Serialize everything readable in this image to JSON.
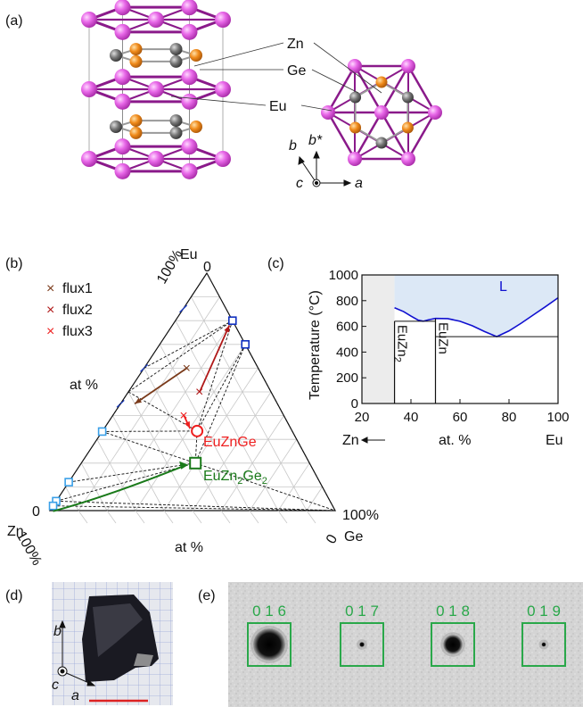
{
  "panels": {
    "a": "(a)",
    "b": "(b)",
    "c": "(c)",
    "d": "(d)",
    "e": "(e)"
  },
  "panel_a": {
    "atom_labels": [
      "Zn",
      "Ge",
      "Eu"
    ],
    "axes": {
      "b": "b",
      "bstar": "b*",
      "c": "c",
      "a": "a"
    },
    "colors": {
      "Eu": "#e060e0",
      "Zn": "#f08a1a",
      "Ge": "#666666",
      "bond": "#8a1a8a"
    }
  },
  "panel_b": {
    "legend": [
      {
        "label": "flux1",
        "color": "#7a3a1a"
      },
      {
        "label": "flux2",
        "color": "#b01818"
      },
      {
        "label": "flux3",
        "color": "#ee2020"
      }
    ],
    "vertices": {
      "top": "Eu",
      "left": "Zn",
      "right": "Ge"
    },
    "corner_values": {
      "top_100": "100%",
      "top_0": "0",
      "left_0": "0",
      "left_100": "100%",
      "right_100": "100%",
      "right_0": "0"
    },
    "axis_labels": {
      "left_side": "at %",
      "bottom": "at %"
    },
    "compounds": [
      {
        "label": "EuZnGe",
        "color": "#ee2020"
      },
      {
        "label_main": "EuZn",
        "label_sub": "2",
        "label_tail": "Ge",
        "label_sub2": "2",
        "color": "#1a7a1a"
      }
    ]
  },
  "panel_c": {
    "chart_data": {
      "type": "area",
      "title": "",
      "ylabel": "Temperature (°C)",
      "xlabel": "at. %",
      "x_left_label": "Zn",
      "x_right_label": "Eu",
      "xlim": [
        20,
        100
      ],
      "ylim": [
        0,
        1000
      ],
      "x_ticks": [
        20,
        40,
        60,
        80,
        100
      ],
      "y_ticks": [
        0,
        200,
        400,
        600,
        800,
        1000
      ],
      "liquidus": {
        "x": [
          33.3,
          37,
          40,
          43,
          45,
          47,
          50,
          55,
          60,
          65,
          70,
          75,
          80,
          85,
          90,
          95,
          100
        ],
        "y": [
          745,
          715,
          680,
          648,
          640,
          650,
          662,
          660,
          640,
          605,
          560,
          520,
          565,
          625,
          690,
          755,
          822
        ]
      },
      "liquid_label": "L",
      "phases": [
        {
          "name_main": "EuZn",
          "name_sub": "2",
          "x": 33.3,
          "top": 640
        },
        {
          "name_main": "EuZn",
          "name_sub": "",
          "x": 50,
          "top": 660
        }
      ],
      "eutectic_y": 520,
      "shaded_until": 33.3,
      "colors": {
        "liquid": "#dce8f6",
        "line": "#1010d0",
        "grey": "#ececec"
      }
    }
  },
  "panel_d": {
    "axes": {
      "b": "b",
      "c": "c",
      "a": "a"
    },
    "scalebar_color": "#dd2222"
  },
  "panel_e": {
    "spots": [
      {
        "label": "0 1 6",
        "size": 0.75
      },
      {
        "label": "0 1 7",
        "size": 0.12
      },
      {
        "label": "0 1 8",
        "size": 0.45
      },
      {
        "label": "0 1 9",
        "size": 0.1
      }
    ],
    "label_color": "#2aa84a"
  }
}
